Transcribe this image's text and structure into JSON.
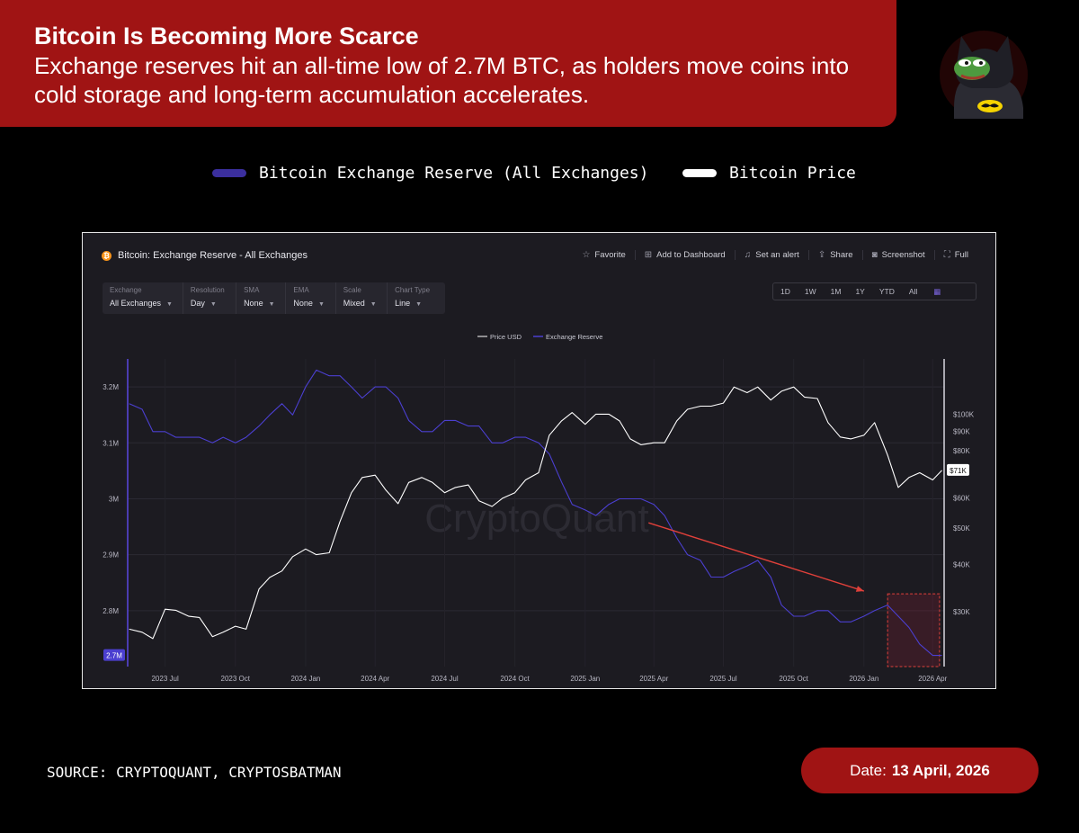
{
  "header": {
    "title": "Bitcoin Is Becoming More Scarce",
    "subtitle": "Exchange reserves hit an all-time low of 2.7M BTC, as holders move coins into cold storage and long-term accumulation accelerates."
  },
  "top_legend": {
    "reserve_label": "Bitcoin Exchange Reserve (All Exchanges)",
    "price_label": "Bitcoin Price",
    "reserve_color": "#3b2f9e",
    "price_color": "#ffffff"
  },
  "panel": {
    "title": "Bitcoin: Exchange Reserve - All Exchanges",
    "coin_symbol": "₿",
    "actions": {
      "favorite": "Favorite",
      "dashboard": "Add to Dashboard",
      "alert": "Set an alert",
      "share": "Share",
      "screenshot": "Screenshot",
      "full": "Full"
    },
    "controls": {
      "exchange": {
        "label": "Exchange",
        "value": "All Exchanges"
      },
      "resolution": {
        "label": "Resolution",
        "value": "Day"
      },
      "sma": {
        "label": "SMA",
        "value": "None"
      },
      "ema": {
        "label": "EMA",
        "value": "None"
      },
      "scale": {
        "label": "Scale",
        "value": "Mixed"
      },
      "chart_type": {
        "label": "Chart Type",
        "value": "Line"
      }
    },
    "ranges": [
      "1D",
      "1W",
      "1M",
      "1Y",
      "YTD",
      "All"
    ],
    "watermark": "CryptoQuant"
  },
  "chart_data": {
    "type": "line",
    "legend": [
      "Price USD",
      "Exchange Reserve"
    ],
    "x_ticks": [
      "2023 Jul",
      "2023 Oct",
      "2024 Jan",
      "2024 Apr",
      "2024 Jul",
      "2024 Oct",
      "2025 Jan",
      "2025 Apr",
      "2025 Jul",
      "2025 Oct",
      "2026 Jan",
      "2026 Apr"
    ],
    "left_ticks": [
      "3.2M",
      "3.1M",
      "3M",
      "2.9M",
      "2.8M"
    ],
    "left_current_label": "2.7M",
    "right_ticks": [
      "$100K",
      "$90K",
      "$80K",
      "$60K",
      "$50K",
      "$40K",
      "$30K"
    ],
    "right_current_label": "$71K",
    "ylim_reserve": [
      2.7,
      3.25
    ],
    "right_axis_scale": "log",
    "grid": true,
    "series": [
      {
        "name": "Exchange Reserve",
        "color": "#4b3fd0",
        "unit": "BTC (M)",
        "points": [
          [
            "2023-05-15",
            3.17
          ],
          [
            "2023-06-01",
            3.16
          ],
          [
            "2023-06-15",
            3.12
          ],
          [
            "2023-07-01",
            3.12
          ],
          [
            "2023-07-15",
            3.11
          ],
          [
            "2023-08-01",
            3.11
          ],
          [
            "2023-08-15",
            3.11
          ],
          [
            "2023-09-01",
            3.1
          ],
          [
            "2023-09-15",
            3.11
          ],
          [
            "2023-10-01",
            3.1
          ],
          [
            "2023-10-15",
            3.11
          ],
          [
            "2023-11-01",
            3.13
          ],
          [
            "2023-11-15",
            3.15
          ],
          [
            "2023-12-01",
            3.17
          ],
          [
            "2023-12-15",
            3.15
          ],
          [
            "2024-01-01",
            3.2
          ],
          [
            "2024-01-15",
            3.23
          ],
          [
            "2024-02-01",
            3.22
          ],
          [
            "2024-02-15",
            3.22
          ],
          [
            "2024-03-01",
            3.2
          ],
          [
            "2024-03-15",
            3.18
          ],
          [
            "2024-04-01",
            3.2
          ],
          [
            "2024-04-15",
            3.2
          ],
          [
            "2024-05-01",
            3.18
          ],
          [
            "2024-05-15",
            3.14
          ],
          [
            "2024-06-01",
            3.12
          ],
          [
            "2024-06-15",
            3.12
          ],
          [
            "2024-07-01",
            3.14
          ],
          [
            "2024-07-15",
            3.14
          ],
          [
            "2024-08-01",
            3.13
          ],
          [
            "2024-08-15",
            3.13
          ],
          [
            "2024-09-01",
            3.1
          ],
          [
            "2024-09-15",
            3.1
          ],
          [
            "2024-10-01",
            3.11
          ],
          [
            "2024-10-15",
            3.11
          ],
          [
            "2024-11-01",
            3.1
          ],
          [
            "2024-11-15",
            3.08
          ],
          [
            "2024-12-01",
            3.03
          ],
          [
            "2024-12-15",
            2.99
          ],
          [
            "2025-01-01",
            2.98
          ],
          [
            "2025-01-15",
            2.97
          ],
          [
            "2025-02-01",
            2.99
          ],
          [
            "2025-02-15",
            3.0
          ],
          [
            "2025-03-01",
            3.0
          ],
          [
            "2025-03-15",
            3.0
          ],
          [
            "2025-04-01",
            2.99
          ],
          [
            "2025-04-15",
            2.97
          ],
          [
            "2025-05-01",
            2.93
          ],
          [
            "2025-05-15",
            2.9
          ],
          [
            "2025-06-01",
            2.89
          ],
          [
            "2025-06-15",
            2.86
          ],
          [
            "2025-07-01",
            2.86
          ],
          [
            "2025-07-15",
            2.87
          ],
          [
            "2025-08-01",
            2.88
          ],
          [
            "2025-08-15",
            2.89
          ],
          [
            "2025-09-01",
            2.86
          ],
          [
            "2025-09-15",
            2.81
          ],
          [
            "2025-10-01",
            2.79
          ],
          [
            "2025-10-15",
            2.79
          ],
          [
            "2025-11-01",
            2.8
          ],
          [
            "2025-11-15",
            2.8
          ],
          [
            "2025-12-01",
            2.78
          ],
          [
            "2025-12-15",
            2.78
          ],
          [
            "2026-01-01",
            2.79
          ],
          [
            "2026-01-15",
            2.8
          ],
          [
            "2026-02-01",
            2.81
          ],
          [
            "2026-02-15",
            2.79
          ],
          [
            "2026-03-01",
            2.77
          ],
          [
            "2026-03-15",
            2.74
          ],
          [
            "2026-04-01",
            2.72
          ],
          [
            "2026-04-13",
            2.72
          ]
        ]
      },
      {
        "name": "Price USD",
        "color": "#ffffff",
        "unit": "USD",
        "points": [
          [
            "2023-05-15",
            27000
          ],
          [
            "2023-06-01",
            26500
          ],
          [
            "2023-06-15",
            25500
          ],
          [
            "2023-07-01",
            30500
          ],
          [
            "2023-07-15",
            30300
          ],
          [
            "2023-08-01",
            29200
          ],
          [
            "2023-08-15",
            29000
          ],
          [
            "2023-09-01",
            25800
          ],
          [
            "2023-09-15",
            26500
          ],
          [
            "2023-10-01",
            27500
          ],
          [
            "2023-10-15",
            27000
          ],
          [
            "2023-11-01",
            34500
          ],
          [
            "2023-11-15",
            37000
          ],
          [
            "2023-12-01",
            38500
          ],
          [
            "2023-12-15",
            42000
          ],
          [
            "2024-01-01",
            44000
          ],
          [
            "2024-01-15",
            42500
          ],
          [
            "2024-02-01",
            43000
          ],
          [
            "2024-02-15",
            52000
          ],
          [
            "2024-03-01",
            62000
          ],
          [
            "2024-03-15",
            68000
          ],
          [
            "2024-04-01",
            69000
          ],
          [
            "2024-04-15",
            63000
          ],
          [
            "2024-05-01",
            58000
          ],
          [
            "2024-05-15",
            66000
          ],
          [
            "2024-06-01",
            68000
          ],
          [
            "2024-06-15",
            66000
          ],
          [
            "2024-07-01",
            62000
          ],
          [
            "2024-07-15",
            64000
          ],
          [
            "2024-08-01",
            65000
          ],
          [
            "2024-08-15",
            59000
          ],
          [
            "2024-09-01",
            57000
          ],
          [
            "2024-09-15",
            60000
          ],
          [
            "2024-10-01",
            62000
          ],
          [
            "2024-10-15",
            67000
          ],
          [
            "2024-11-01",
            70000
          ],
          [
            "2024-11-15",
            88000
          ],
          [
            "2024-12-01",
            96000
          ],
          [
            "2024-12-15",
            101000
          ],
          [
            "2025-01-01",
            94000
          ],
          [
            "2025-01-15",
            100000
          ],
          [
            "2025-02-01",
            100000
          ],
          [
            "2025-02-15",
            96000
          ],
          [
            "2025-03-01",
            86000
          ],
          [
            "2025-03-15",
            83000
          ],
          [
            "2025-04-01",
            84000
          ],
          [
            "2025-04-15",
            84000
          ],
          [
            "2025-05-01",
            96000
          ],
          [
            "2025-05-15",
            103000
          ],
          [
            "2025-06-01",
            105000
          ],
          [
            "2025-06-15",
            105000
          ],
          [
            "2025-07-01",
            107000
          ],
          [
            "2025-07-15",
            118000
          ],
          [
            "2025-08-01",
            114000
          ],
          [
            "2025-08-15",
            118000
          ],
          [
            "2025-09-01",
            109000
          ],
          [
            "2025-09-15",
            115000
          ],
          [
            "2025-10-01",
            118000
          ],
          [
            "2025-10-15",
            111000
          ],
          [
            "2025-11-01",
            110000
          ],
          [
            "2025-11-15",
            95000
          ],
          [
            "2025-12-01",
            87000
          ],
          [
            "2025-12-15",
            86000
          ],
          [
            "2026-01-01",
            88000
          ],
          [
            "2026-01-15",
            95000
          ],
          [
            "2026-02-01",
            78000
          ],
          [
            "2026-02-15",
            64000
          ],
          [
            "2026-03-01",
            68000
          ],
          [
            "2026-03-15",
            70000
          ],
          [
            "2026-04-01",
            67000
          ],
          [
            "2026-04-13",
            71000
          ]
        ]
      }
    ],
    "annotation": {
      "type": "arrow",
      "color": "#e0403a",
      "from": [
        "2025-03-25",
        2.957
      ],
      "to": [
        "2026-01-01",
        2.835
      ]
    },
    "highlight": {
      "x_range": [
        "2026-02-01",
        "2026-04-10"
      ],
      "y_range": [
        2.7,
        2.83
      ],
      "color": "#e0403a"
    }
  },
  "footer": {
    "source": "SOURCE: CRYPTOQUANT, CRYPTOSBATMAN",
    "date_label": "Date:",
    "date_value": "13 April, 2026"
  }
}
